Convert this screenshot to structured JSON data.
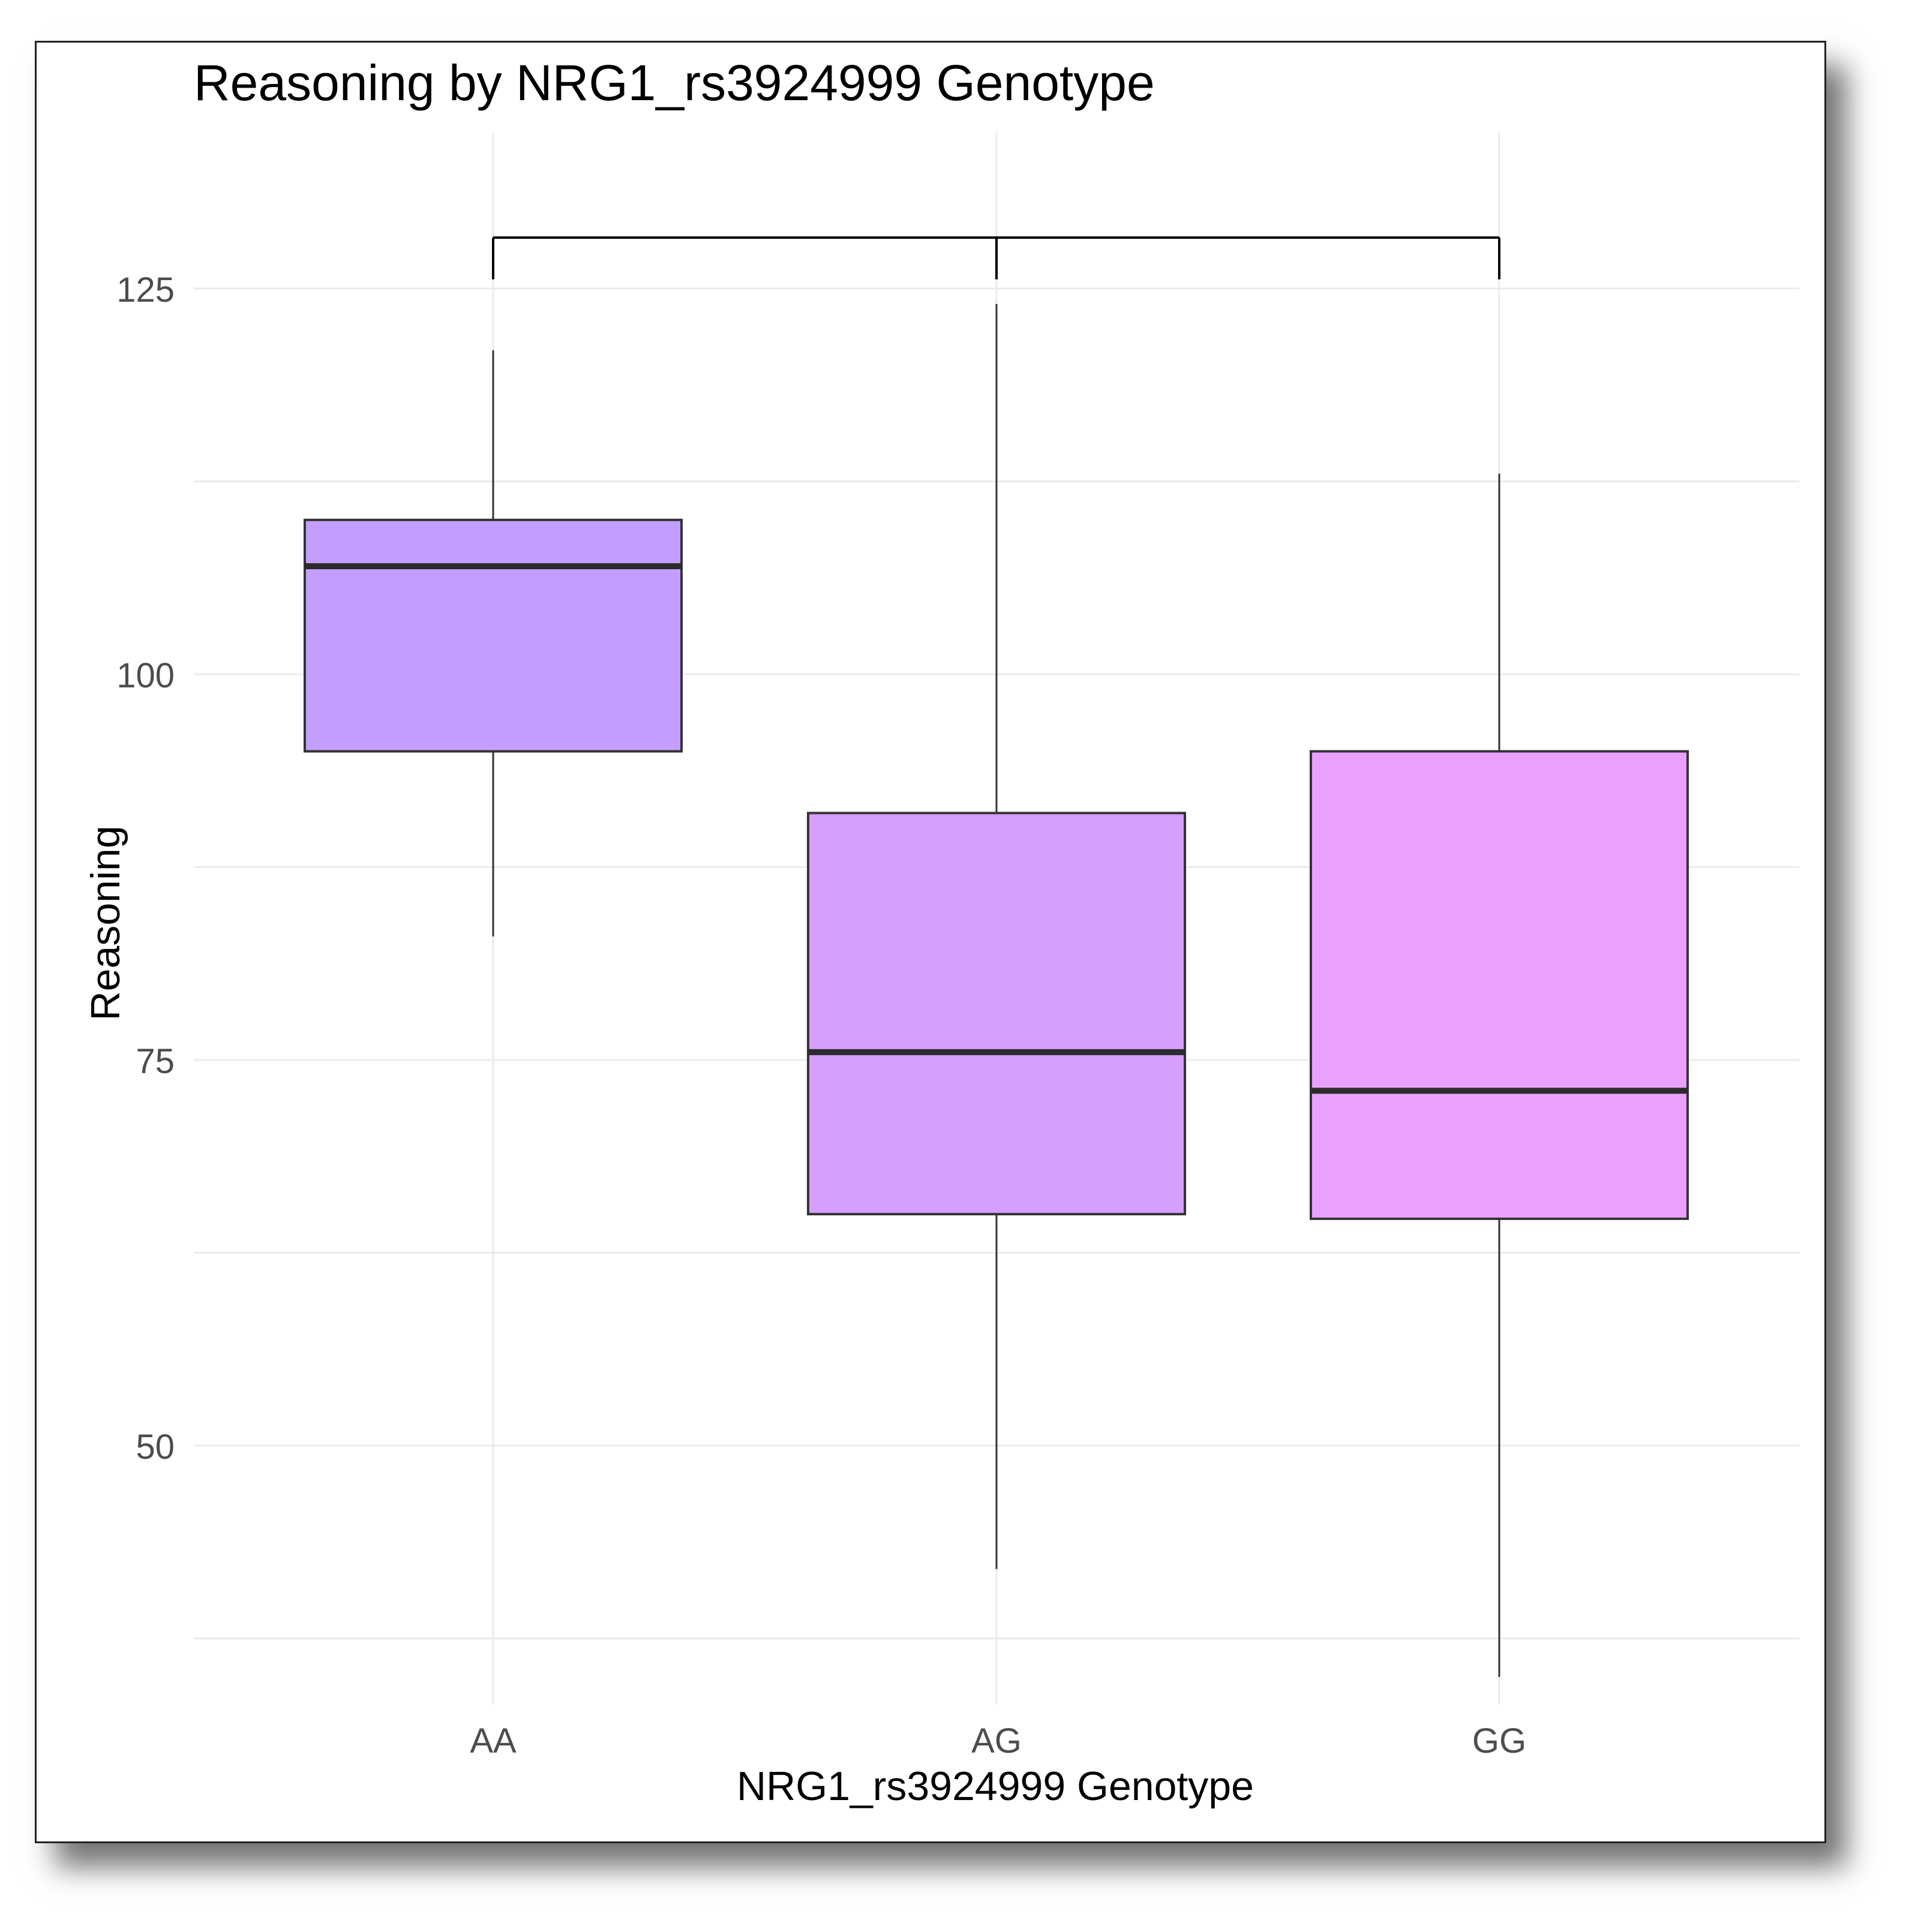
{
  "chart_data": {
    "type": "box",
    "title": "Reasoning by NRG1_rs3924999 Genotype",
    "xlabel": "NRG1_rs3924999 Genotype",
    "ylabel": "Reasoning",
    "categories": [
      "AA",
      "AG",
      "GG"
    ],
    "yticks": [
      50,
      75,
      100,
      125
    ],
    "ylim": [
      29,
      135
    ],
    "boxes": [
      {
        "category": "AA",
        "whisker_low": 83,
        "q1": 95,
        "median": 107,
        "q3": 110,
        "whisker_high": 121,
        "color": "#c39eff"
      },
      {
        "category": "AG",
        "whisker_low": 42,
        "q1": 65,
        "median": 75.5,
        "q3": 91,
        "whisker_high": 124,
        "color": "#d69eff"
      },
      {
        "category": "GG",
        "whisker_low": 35,
        "q1": 64.7,
        "median": 73,
        "q3": 95,
        "whisker_high": 113,
        "color": "#eaa1fe"
      }
    ],
    "comparison_bracket": {
      "from": "AA",
      "to": "GG",
      "mid": "AG",
      "top": 128.3,
      "tick_low": 125.6
    },
    "grid": true,
    "legend": "none"
  }
}
